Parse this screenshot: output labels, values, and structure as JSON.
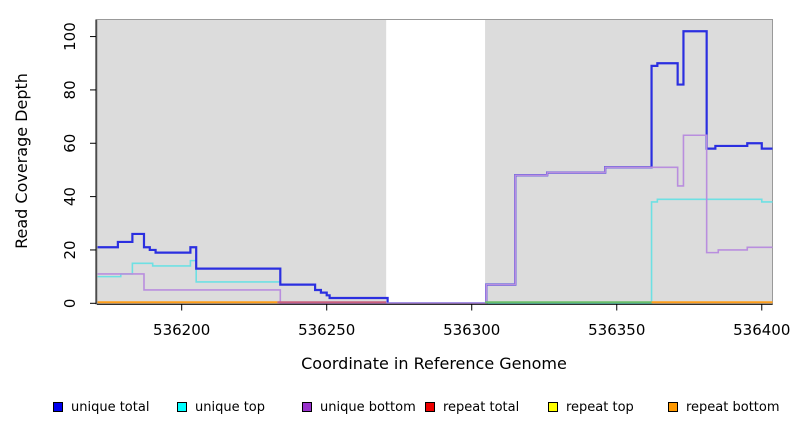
{
  "chart_data": {
    "type": "line",
    "subtype": "step-coverage",
    "title": "",
    "xlabel": "Coordinate in Reference Genome",
    "ylabel": "Read Coverage Depth",
    "xlim": [
      536170.8,
      536403.7
    ],
    "ylim": [
      0,
      106.4
    ],
    "x_ticks": [
      536200,
      536250,
      536300,
      536350,
      536400
    ],
    "x_tick_labels": [
      "536200",
      "536250",
      "536300",
      "536350",
      "536400"
    ],
    "y_ticks": [
      0,
      20,
      40,
      60,
      80,
      100
    ],
    "y_tick_labels": [
      "0",
      "20",
      "40",
      "60",
      "80",
      "100"
    ],
    "grid": false,
    "panel_background": "#dcdcdc",
    "panel_border_color": "#999999",
    "gap_region": {
      "x_start": 536270.5,
      "x_end": 536304.6,
      "color": "#ffffff"
    },
    "series": [
      {
        "name": "unique top",
        "line_color": "#6ee0e3",
        "line_width": 1.6,
        "steps": [
          [
            536171,
            10
          ],
          [
            536179,
            11
          ],
          [
            536183,
            15
          ],
          [
            536190,
            14
          ],
          [
            536203,
            16
          ],
          [
            536205,
            8
          ],
          [
            536234,
            7
          ],
          [
            536246,
            5
          ],
          [
            536248,
            4
          ],
          [
            536250,
            3
          ],
          [
            536251,
            2
          ],
          [
            536271,
            0
          ],
          [
            536362,
            38
          ],
          [
            536364,
            39
          ],
          [
            536400,
            38
          ]
        ],
        "x_end": 536403.7
      },
      {
        "name": "unique total",
        "line_color": "#2b2fe0",
        "line_width": 2.2,
        "steps": [
          [
            536171,
            21
          ],
          [
            536178,
            23
          ],
          [
            536183,
            26
          ],
          [
            536187,
            21
          ],
          [
            536189,
            20
          ],
          [
            536191,
            19
          ],
          [
            536203,
            21
          ],
          [
            536205,
            13
          ],
          [
            536234,
            7
          ],
          [
            536246,
            5
          ],
          [
            536248,
            4
          ],
          [
            536250,
            3
          ],
          [
            536251,
            2
          ],
          [
            536271,
            0
          ],
          [
            536305,
            7
          ],
          [
            536315,
            48
          ],
          [
            536326,
            49
          ],
          [
            536346,
            51
          ],
          [
            536362,
            89
          ],
          [
            536364,
            90
          ],
          [
            536371,
            82
          ],
          [
            536373,
            102
          ],
          [
            536381,
            58
          ],
          [
            536384,
            59
          ],
          [
            536395,
            60
          ],
          [
            536400,
            58
          ]
        ],
        "x_end": 536403.7
      },
      {
        "name": "unique bottom",
        "line_color": "#b98ede",
        "line_width": 1.6,
        "steps": [
          [
            536171,
            11
          ],
          [
            536187,
            5
          ],
          [
            536234,
            0
          ],
          [
            536305,
            7
          ],
          [
            536315,
            48
          ],
          [
            536326,
            49
          ],
          [
            536346,
            51
          ],
          [
            536371,
            44
          ],
          [
            536373,
            63
          ],
          [
            536381,
            19
          ],
          [
            536385,
            20
          ],
          [
            536395,
            21
          ]
        ],
        "x_end": 536403.7
      }
    ],
    "zero_line_segments": [
      {
        "x_start": 536171,
        "x_end": 536233,
        "color": "#ff9e1b",
        "series": "repeat bottom"
      },
      {
        "x_start": 536233,
        "x_end": 536270.5,
        "color": "#c9607e",
        "series": "repeat total"
      },
      {
        "x_start": 536304.6,
        "x_end": 536362,
        "color": "#68be6a",
        "series": "repeat top"
      },
      {
        "x_start": 536362,
        "x_end": 536403.7,
        "color": "#ff9e1b",
        "series": "repeat bottom"
      }
    ]
  },
  "legend": {
    "items": [
      {
        "label": "unique total",
        "color": "#0000ee"
      },
      {
        "label": "unique top",
        "color": "#00ffff"
      },
      {
        "label": "unique bottom",
        "color": "#9932cc"
      },
      {
        "label": "repeat total",
        "color": "#ee0000"
      },
      {
        "label": "repeat top",
        "color": "#ffff00"
      },
      {
        "label": "repeat bottom",
        "color": "#ff9900"
      }
    ]
  }
}
